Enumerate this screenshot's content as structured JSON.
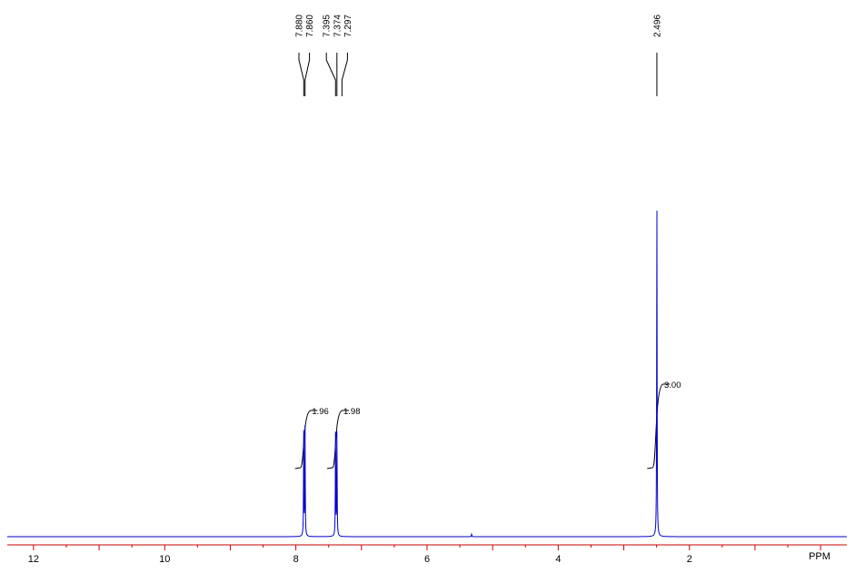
{
  "chart_data": {
    "type": "line",
    "title": "",
    "xlabel": "PPM",
    "ylabel": "",
    "xlim": [
      12.4,
      -0.4
    ],
    "x_reversed": true,
    "x_ticks": [
      "12",
      "10",
      "8",
      "6",
      "4",
      "2"
    ],
    "x_tick_values": [
      12,
      10,
      8,
      6,
      4,
      2
    ],
    "series": [
      {
        "peaks": [
          {
            "ppm": 7.88,
            "height": 0.31
          },
          {
            "ppm": 7.86,
            "height": 0.32
          },
          {
            "ppm": 7.395,
            "height": 0.31
          },
          {
            "ppm": 7.374,
            "height": 0.32
          },
          {
            "ppm": 2.496,
            "height": 1.0
          },
          {
            "ppm": 5.32,
            "height": 0.008
          }
        ]
      }
    ],
    "peak_labels": [
      "7.880",
      "7.860",
      "7.395",
      "7.374",
      "7.297",
      "2.496"
    ],
    "peak_label_values": [
      7.88,
      7.86,
      7.395,
      7.374,
      7.297,
      2.496
    ],
    "integrations": [
      {
        "label": "1.96",
        "from": 7.93,
        "to": 7.81
      },
      {
        "label": "1.98",
        "from": 7.44,
        "to": 7.33
      },
      {
        "label": "3.00",
        "from": 2.56,
        "to": 2.44
      }
    ],
    "colors": {
      "spectrum": "#0000cc",
      "axis": "#cc0000",
      "text": "#000000"
    }
  }
}
